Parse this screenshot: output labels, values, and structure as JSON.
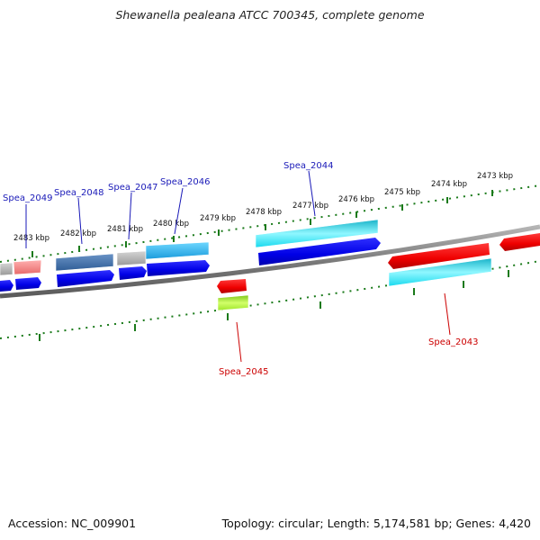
{
  "title": "Shewanella pealeana ATCC 700345, complete genome",
  "footer": {
    "accession": "Accession: NC_009901",
    "summary": "Topology: circular; Length: 5,174,581 bp; Genes: 4,420"
  },
  "colors": {
    "forward_label": "#1a1ab8",
    "reverse_label": "#cc0000",
    "tick": "#1a7a1a",
    "backbone": "#888888"
  },
  "scale_labels": [
    {
      "kbp": 2483,
      "text": "2483 kbp"
    },
    {
      "kbp": 2482,
      "text": "2482 kbp"
    },
    {
      "kbp": 2481,
      "text": "2481 kbp"
    },
    {
      "kbp": 2480,
      "text": "2480 kbp"
    },
    {
      "kbp": 2479,
      "text": "2479 kbp"
    },
    {
      "kbp": 2478,
      "text": "2478 kbp"
    },
    {
      "kbp": 2477,
      "text": "2477 kbp"
    },
    {
      "kbp": 2476,
      "text": "2476 kbp"
    },
    {
      "kbp": 2475,
      "text": "2475 kbp"
    },
    {
      "kbp": 2474,
      "text": "2474 kbp"
    },
    {
      "kbp": 2473,
      "text": "2473 kbp"
    }
  ],
  "genes": [
    {
      "name": "Spea_2049",
      "strand": "forward"
    },
    {
      "name": "Spea_2048",
      "strand": "forward"
    },
    {
      "name": "Spea_2047",
      "strand": "forward"
    },
    {
      "name": "Spea_2046",
      "strand": "forward"
    },
    {
      "name": "Spea_2044",
      "strand": "forward"
    },
    {
      "name": "Spea_2045",
      "strand": "reverse"
    },
    {
      "name": "Spea_2043",
      "strand": "reverse"
    }
  ]
}
